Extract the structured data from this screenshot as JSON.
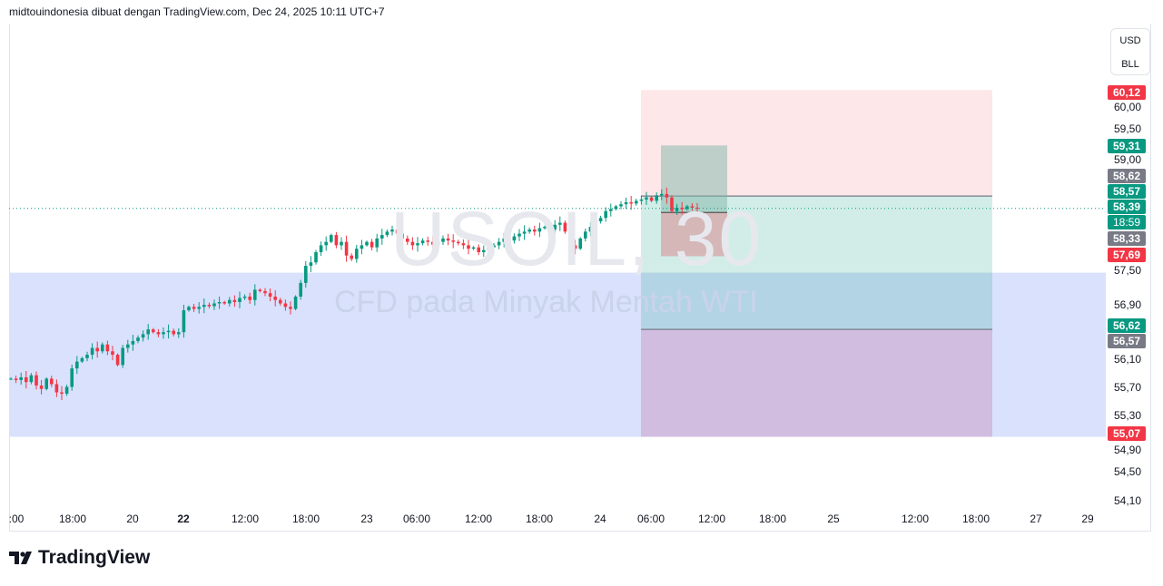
{
  "header": {
    "text": "midtouindonesia dibuat dengan TradingView.com, Dec 24, 2025 10:11 UTC+7"
  },
  "watermark": {
    "symbol": "USOIL, 30",
    "description": "CFD pada Minyak Mentah WTI"
  },
  "unit": {
    "currency": "USD",
    "unit": "BLL"
  },
  "brand": {
    "name": "TradingView"
  },
  "chart_data": {
    "type": "candlestick",
    "interval": "30",
    "closes": [
      55.9,
      55.88,
      55.92,
      55.85,
      55.95,
      55.8,
      55.75,
      55.9,
      55.82,
      55.7,
      55.68,
      55.78,
      56.05,
      56.15,
      56.2,
      56.25,
      56.35,
      56.3,
      56.4,
      56.3,
      56.25,
      56.1,
      56.35,
      56.4,
      56.45,
      56.5,
      56.55,
      56.62,
      56.58,
      56.55,
      56.58,
      56.6,
      56.55,
      56.58,
      56.9,
      56.95,
      56.92,
      56.95,
      56.98,
      56.96,
      57.0,
      57.02,
      57.0,
      57.05,
      57.02,
      57.08,
      57.1,
      57.05,
      57.2,
      57.18,
      57.15,
      57.1,
      57.05,
      57.0,
      56.95,
      56.92,
      57.1,
      57.3,
      57.55,
      57.6,
      57.75,
      57.85,
      57.9,
      58.0,
      57.85,
      57.9,
      57.7,
      57.65,
      57.8,
      57.85,
      57.9,
      57.82,
      57.95,
      58.0,
      58.05,
      58.08,
      58.02,
      57.95,
      57.9,
      57.85,
      57.88,
      57.92,
      57.9,
      57.86,
      57.9,
      57.95,
      57.92,
      57.9,
      57.88,
      57.85,
      57.8,
      57.82,
      57.75,
      57.78,
      57.82,
      57.85,
      57.9,
      57.95,
      57.92,
      57.98,
      58.02,
      58.05,
      58.08,
      58.05,
      58.1,
      58.12,
      58.08,
      58.15,
      58.18,
      58.05,
      57.85,
      57.8,
      57.95,
      58.05,
      58.12,
      58.2,
      58.25,
      58.35,
      58.38,
      58.42,
      58.45,
      58.48,
      58.46,
      58.5,
      58.52,
      58.55,
      58.5,
      58.58,
      58.6,
      58.55,
      58.35,
      58.4,
      58.38,
      58.42,
      58.4,
      58.39
    ],
    "price_ticks": [
      "60,00",
      "59,50",
      "59,00",
      "57,50",
      "56,90",
      "56,10",
      "55,70",
      "55,30",
      "54,90",
      "54,50",
      "54,10"
    ],
    "time_ticks": [
      ":00",
      "18:00",
      "20",
      "22",
      "12:00",
      "18:00",
      "23",
      "06:00",
      "12:00",
      "18:00",
      "24",
      "06:00",
      "12:00",
      "18:00",
      "25",
      "12:00",
      "18:00",
      "27",
      "29"
    ],
    "price_labels": [
      {
        "text": "60,12",
        "color": "#f23645"
      },
      {
        "text": "59,31",
        "color": "#089981"
      },
      {
        "text": "58,62",
        "color": "#787b86"
      },
      {
        "text": "58,57",
        "color": "#089981"
      },
      {
        "text": "58,39",
        "color": "#089981"
      },
      {
        "text": "18:59",
        "color": "#089981"
      },
      {
        "text": "58,33",
        "color": "#787b86"
      },
      {
        "text": "57,69",
        "color": "#f23645"
      },
      {
        "text": "56,62",
        "color": "#089981"
      },
      {
        "text": "56,57",
        "color": "#787b86"
      },
      {
        "text": "55,07",
        "color": "#f23645"
      }
    ],
    "last_price": 58.39,
    "colors": {
      "up": "#089981",
      "down": "#f23645"
    },
    "positions": [
      {
        "entry": 58.57,
        "stop": 60.12,
        "target": 56.62
      },
      {
        "entry": 58.33,
        "stop": 57.69,
        "target": 59.31
      }
    ],
    "zone": {
      "top": 57.45,
      "bottom": 55.05
    }
  }
}
